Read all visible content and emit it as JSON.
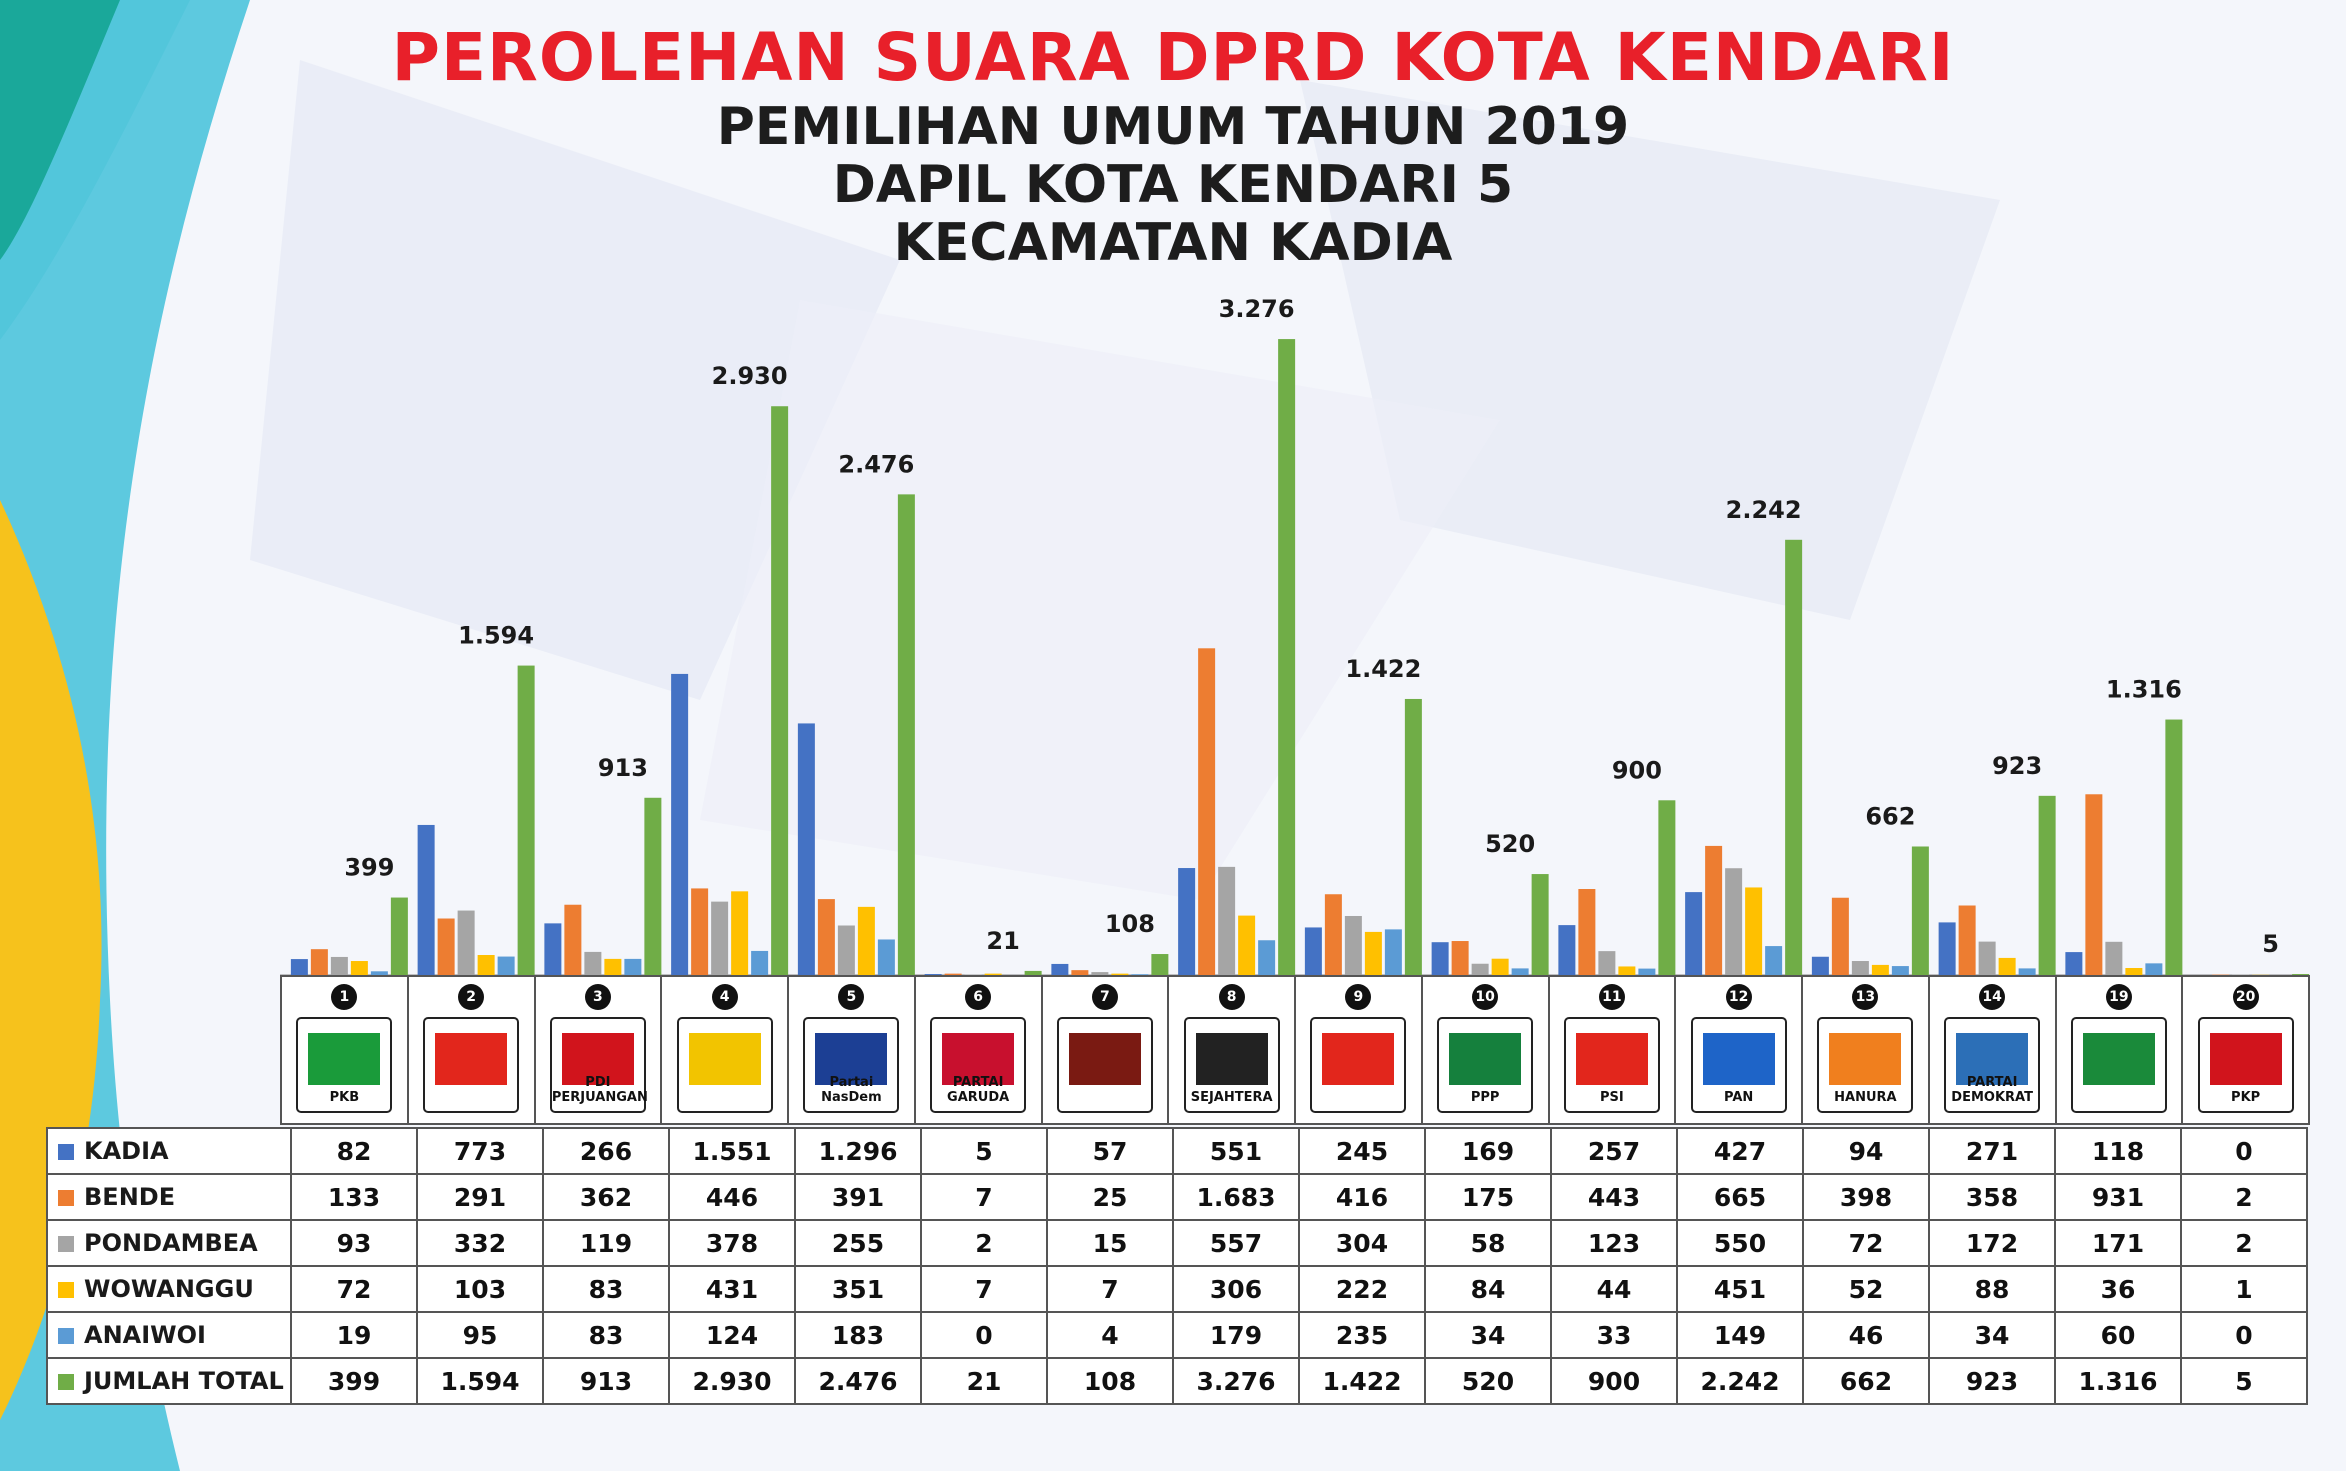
{
  "title": {
    "main": "PEROLEHAN SUARA DPRD KOTA KENDARI",
    "line1": "PEMILIHAN UMUM TAHUN 2019",
    "line2": "DAPIL KOTA KENDARI 5",
    "line3": "KECAMATAN KADIA"
  },
  "parties": [
    {
      "number": "1",
      "label": "PKB",
      "color": "#1a9b3a"
    },
    {
      "number": "2",
      "label": "",
      "color": "#e2261c"
    },
    {
      "number": "3",
      "label": "PDI PERJUANGAN",
      "color": "#d1141c"
    },
    {
      "number": "4",
      "label": "",
      "color": "#f2c400"
    },
    {
      "number": "5",
      "label": "Partai NasDem",
      "color": "#1c3f94"
    },
    {
      "number": "6",
      "label": "PARTAI GARUDA",
      "color": "#c8102e"
    },
    {
      "number": "7",
      "label": "",
      "color": "#7a1a12"
    },
    {
      "number": "8",
      "label": "SEJAHTERA",
      "color": "#222222"
    },
    {
      "number": "9",
      "label": "",
      "color": "#e2261c"
    },
    {
      "number": "10",
      "label": "PPP",
      "color": "#15803d"
    },
    {
      "number": "11",
      "label": "PSI",
      "color": "#e2261c"
    },
    {
      "number": "12",
      "label": "PAN",
      "color": "#1e64c8"
    },
    {
      "number": "13",
      "label": "HANURA",
      "color": "#f07f1e"
    },
    {
      "number": "14",
      "label": "PARTAI DEMOKRAT",
      "color": "#2c6fb7"
    },
    {
      "number": "19",
      "label": "",
      "color": "#1a8a3a"
    },
    {
      "number": "20",
      "label": "PKP",
      "color": "#d1141c"
    }
  ],
  "chart_data": {
    "type": "bar",
    "categories": [
      "1",
      "2",
      "3",
      "4",
      "5",
      "6",
      "7",
      "8",
      "9",
      "10",
      "11",
      "12",
      "13",
      "14",
      "19",
      "20"
    ],
    "series": [
      {
        "name": "KADIA",
        "color": "#4472c4",
        "values": [
          82,
          773,
          266,
          1551,
          1296,
          5,
          57,
          551,
          245,
          169,
          257,
          427,
          94,
          271,
          118,
          0
        ],
        "labels": [
          "82",
          "773",
          "266",
          "1.551",
          "1.296",
          "5",
          "57",
          "551",
          "245",
          "169",
          "257",
          "427",
          "94",
          "271",
          "118",
          "0"
        ]
      },
      {
        "name": "BENDE",
        "color": "#ed7d31",
        "values": [
          133,
          291,
          362,
          446,
          391,
          7,
          25,
          1683,
          416,
          175,
          443,
          665,
          398,
          358,
          931,
          2
        ],
        "labels": [
          "133",
          "291",
          "362",
          "446",
          "391",
          "7",
          "25",
          "1.683",
          "416",
          "175",
          "443",
          "665",
          "398",
          "358",
          "931",
          "2"
        ]
      },
      {
        "name": "PONDAMBEA",
        "color": "#a5a5a5",
        "values": [
          93,
          332,
          119,
          378,
          255,
          2,
          15,
          557,
          304,
          58,
          123,
          550,
          72,
          172,
          171,
          2
        ],
        "labels": [
          "93",
          "332",
          "119",
          "378",
          "255",
          "2",
          "15",
          "557",
          "304",
          "58",
          "123",
          "550",
          "72",
          "172",
          "171",
          "2"
        ]
      },
      {
        "name": "WOWANGGU",
        "color": "#ffc000",
        "values": [
          72,
          103,
          83,
          431,
          351,
          7,
          7,
          306,
          222,
          84,
          44,
          451,
          52,
          88,
          36,
          1
        ],
        "labels": [
          "72",
          "103",
          "83",
          "431",
          "351",
          "7",
          "7",
          "306",
          "222",
          "84",
          "44",
          "451",
          "52",
          "88",
          "36",
          "1"
        ]
      },
      {
        "name": "ANAIWOI",
        "color": "#5b9bd5",
        "values": [
          19,
          95,
          83,
          124,
          183,
          0,
          4,
          179,
          235,
          34,
          33,
          149,
          46,
          34,
          60,
          0
        ],
        "labels": [
          "19",
          "95",
          "83",
          "124",
          "183",
          "0",
          "4",
          "179",
          "235",
          "34",
          "33",
          "149",
          "46",
          "34",
          "60",
          "0"
        ]
      },
      {
        "name": "JUMLAH TOTAL",
        "color": "#70ad47",
        "values": [
          399,
          1594,
          913,
          2930,
          2476,
          21,
          108,
          3276,
          1422,
          520,
          900,
          2242,
          662,
          923,
          1316,
          5
        ],
        "labels": [
          "399",
          "1.594",
          "913",
          "2.930",
          "2.476",
          "21",
          "108",
          "3.276",
          "1.422",
          "520",
          "900",
          "2.242",
          "662",
          "923",
          "1.316",
          "5"
        ]
      }
    ],
    "data_labels_series": "JUMLAH TOTAL",
    "ylim": [
      0,
      3400
    ],
    "grid": false,
    "legend": "table-left"
  }
}
